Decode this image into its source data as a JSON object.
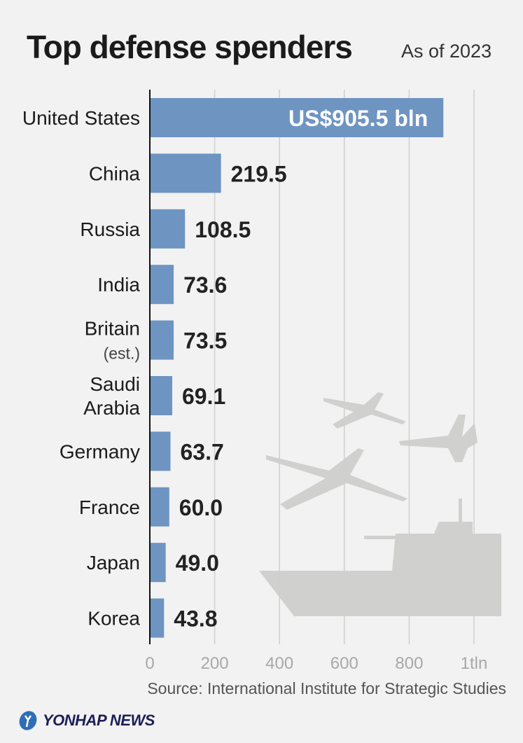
{
  "header": {
    "title": "Top defense spenders",
    "subtitle": "As of 2023"
  },
  "chart_data": {
    "type": "bar",
    "orientation": "horizontal",
    "categories": [
      "United States",
      "China",
      "Russia",
      "India",
      "Britain",
      "Saudi Arabia",
      "Germany",
      "France",
      "Japan",
      "Korea"
    ],
    "category_notes": {
      "Britain": "(est.)"
    },
    "values": [
      905.5,
      219.5,
      108.5,
      73.6,
      73.5,
      69.1,
      63.7,
      60.0,
      49.0,
      43.8
    ],
    "value_labels": [
      "US$905.5 bln",
      "219.5",
      "108.5",
      "73.6",
      "73.5",
      "69.1",
      "63.7",
      "60.0",
      "49.0",
      "43.8"
    ],
    "xlim": [
      0,
      1000
    ],
    "xticks": [
      0,
      200,
      400,
      600,
      800,
      1000
    ],
    "xtick_labels": [
      "0",
      "200",
      "400",
      "600",
      "800",
      "1tln"
    ],
    "grid": true,
    "bar_color": "#6e94c2"
  },
  "footer": {
    "source": "Source: International Institute for Strategic Studies",
    "logo": "YONHAP NEWS"
  }
}
